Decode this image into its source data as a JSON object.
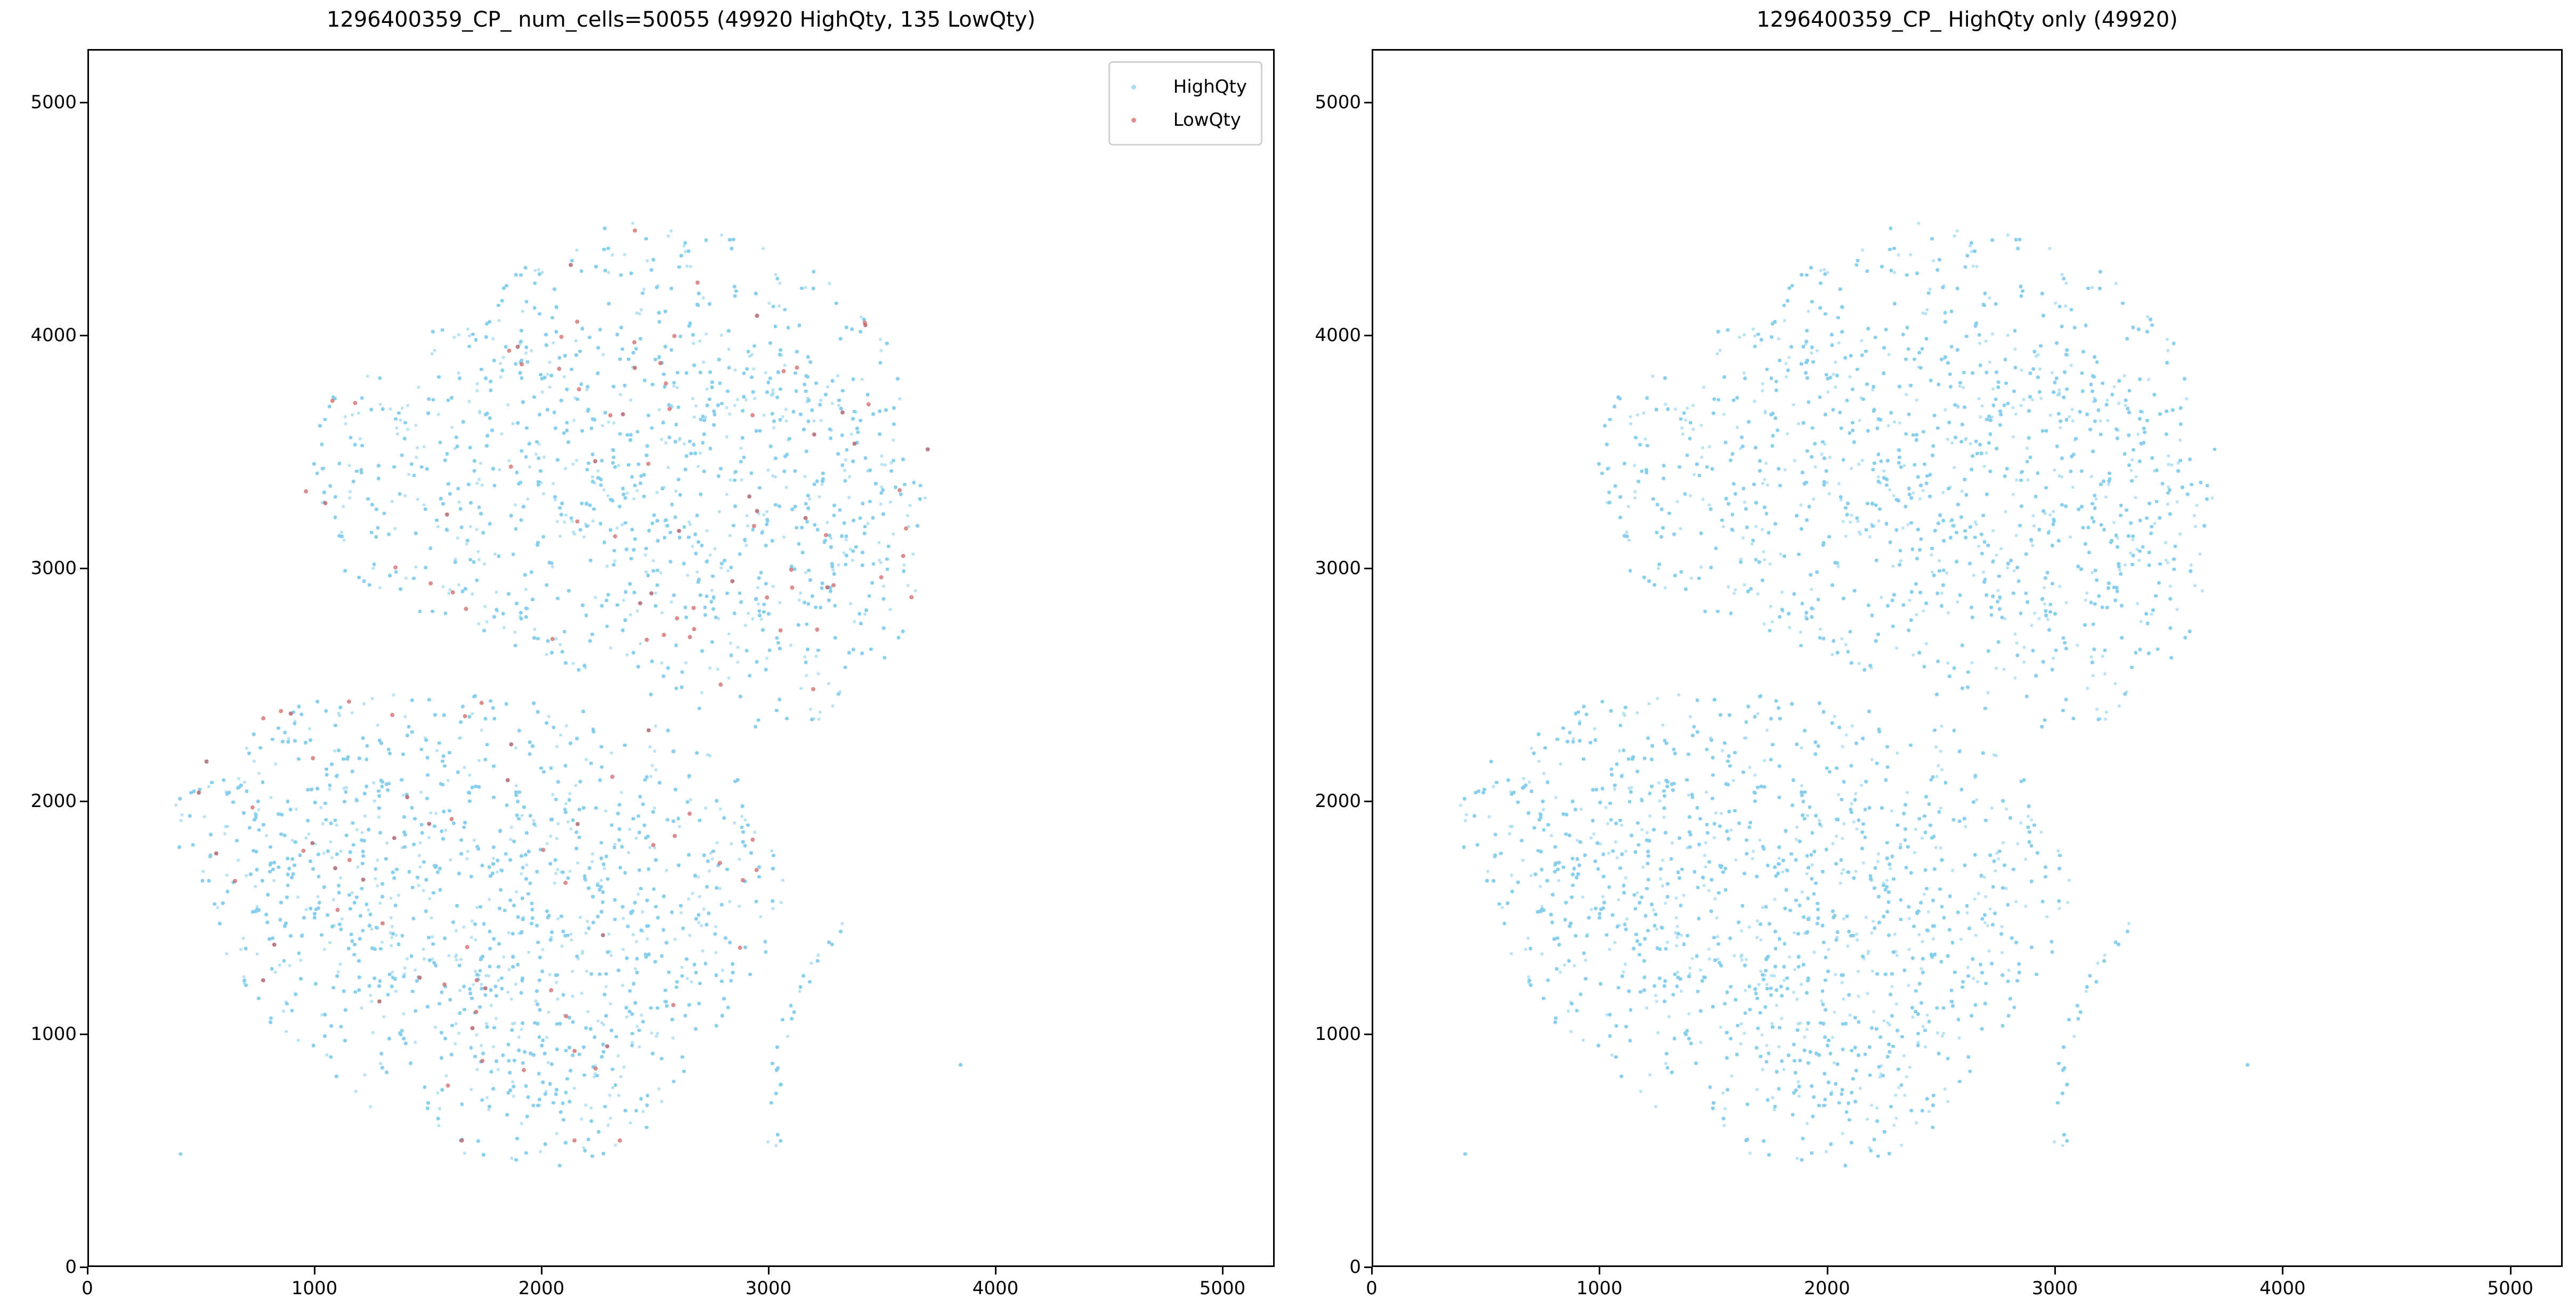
{
  "colors": {
    "highqty": "#87CEEB",
    "lowqty": "#CD5C5C"
  },
  "chart_data": [
    {
      "type": "scatter",
      "title": "1296400359_CP_ num_cells=50055 (49920 HighQty, 135 LowQty)",
      "xlim": [
        0,
        5230
      ],
      "ylim": [
        0,
        5230
      ],
      "xticks": [
        "0",
        "1000",
        "2000",
        "3000",
        "4000",
        "5000"
      ],
      "yticks": [
        "0",
        "1000",
        "2000",
        "3000",
        "4000",
        "5000"
      ],
      "legend": {
        "position": "upper-right",
        "entries": [
          "HighQty",
          "LowQty"
        ]
      },
      "series": [
        {
          "name": "HighQty",
          "count": 49920,
          "color": "#87CEEB"
        },
        {
          "name": "LowQty",
          "count": 135,
          "color": "#CD5C5C"
        }
      ]
    },
    {
      "type": "scatter",
      "title": "1296400359_CP_ HighQty only (49920)",
      "xlim": [
        0,
        5230
      ],
      "ylim": [
        0,
        5230
      ],
      "xticks": [
        "0",
        "1000",
        "2000",
        "3000",
        "4000",
        "5000"
      ],
      "yticks": [
        "0",
        "1000",
        "2000",
        "3000",
        "4000",
        "5000"
      ],
      "series": [
        {
          "name": "HighQty",
          "count": 49920,
          "color": "#87CEEB"
        }
      ]
    }
  ]
}
